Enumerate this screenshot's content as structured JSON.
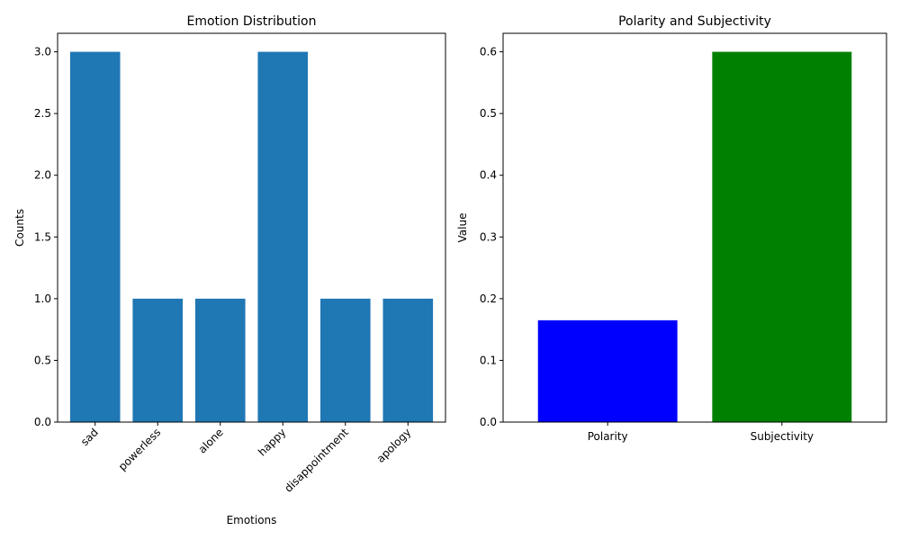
{
  "chart_data": [
    {
      "type": "bar",
      "title": "Emotion Distribution",
      "xlabel": "Emotions",
      "ylabel": "Counts",
      "categories": [
        "sad",
        "powerless",
        "alone",
        "happy",
        "disappointment",
        "apology"
      ],
      "values": [
        3,
        1,
        1,
        3,
        1,
        1
      ],
      "ylim": [
        0,
        3.15
      ],
      "yticks": [
        "0.0",
        "0.5",
        "1.0",
        "1.5",
        "2.0",
        "2.5",
        "3.0"
      ],
      "bar_color": "#1f77b4",
      "xtick_rotation": "45",
      "grid": false
    },
    {
      "type": "bar",
      "title": "Polarity and Subjectivity",
      "xlabel": "",
      "ylabel": "Value",
      "categories": [
        "Polarity",
        "Subjectivity"
      ],
      "values": [
        0.165,
        0.6
      ],
      "ylim": [
        0,
        0.63
      ],
      "yticks": [
        "0.0",
        "0.1",
        "0.2",
        "0.3",
        "0.4",
        "0.5",
        "0.6"
      ],
      "bar_colors": [
        "#0000ff",
        "#008000"
      ],
      "grid": false
    }
  ]
}
